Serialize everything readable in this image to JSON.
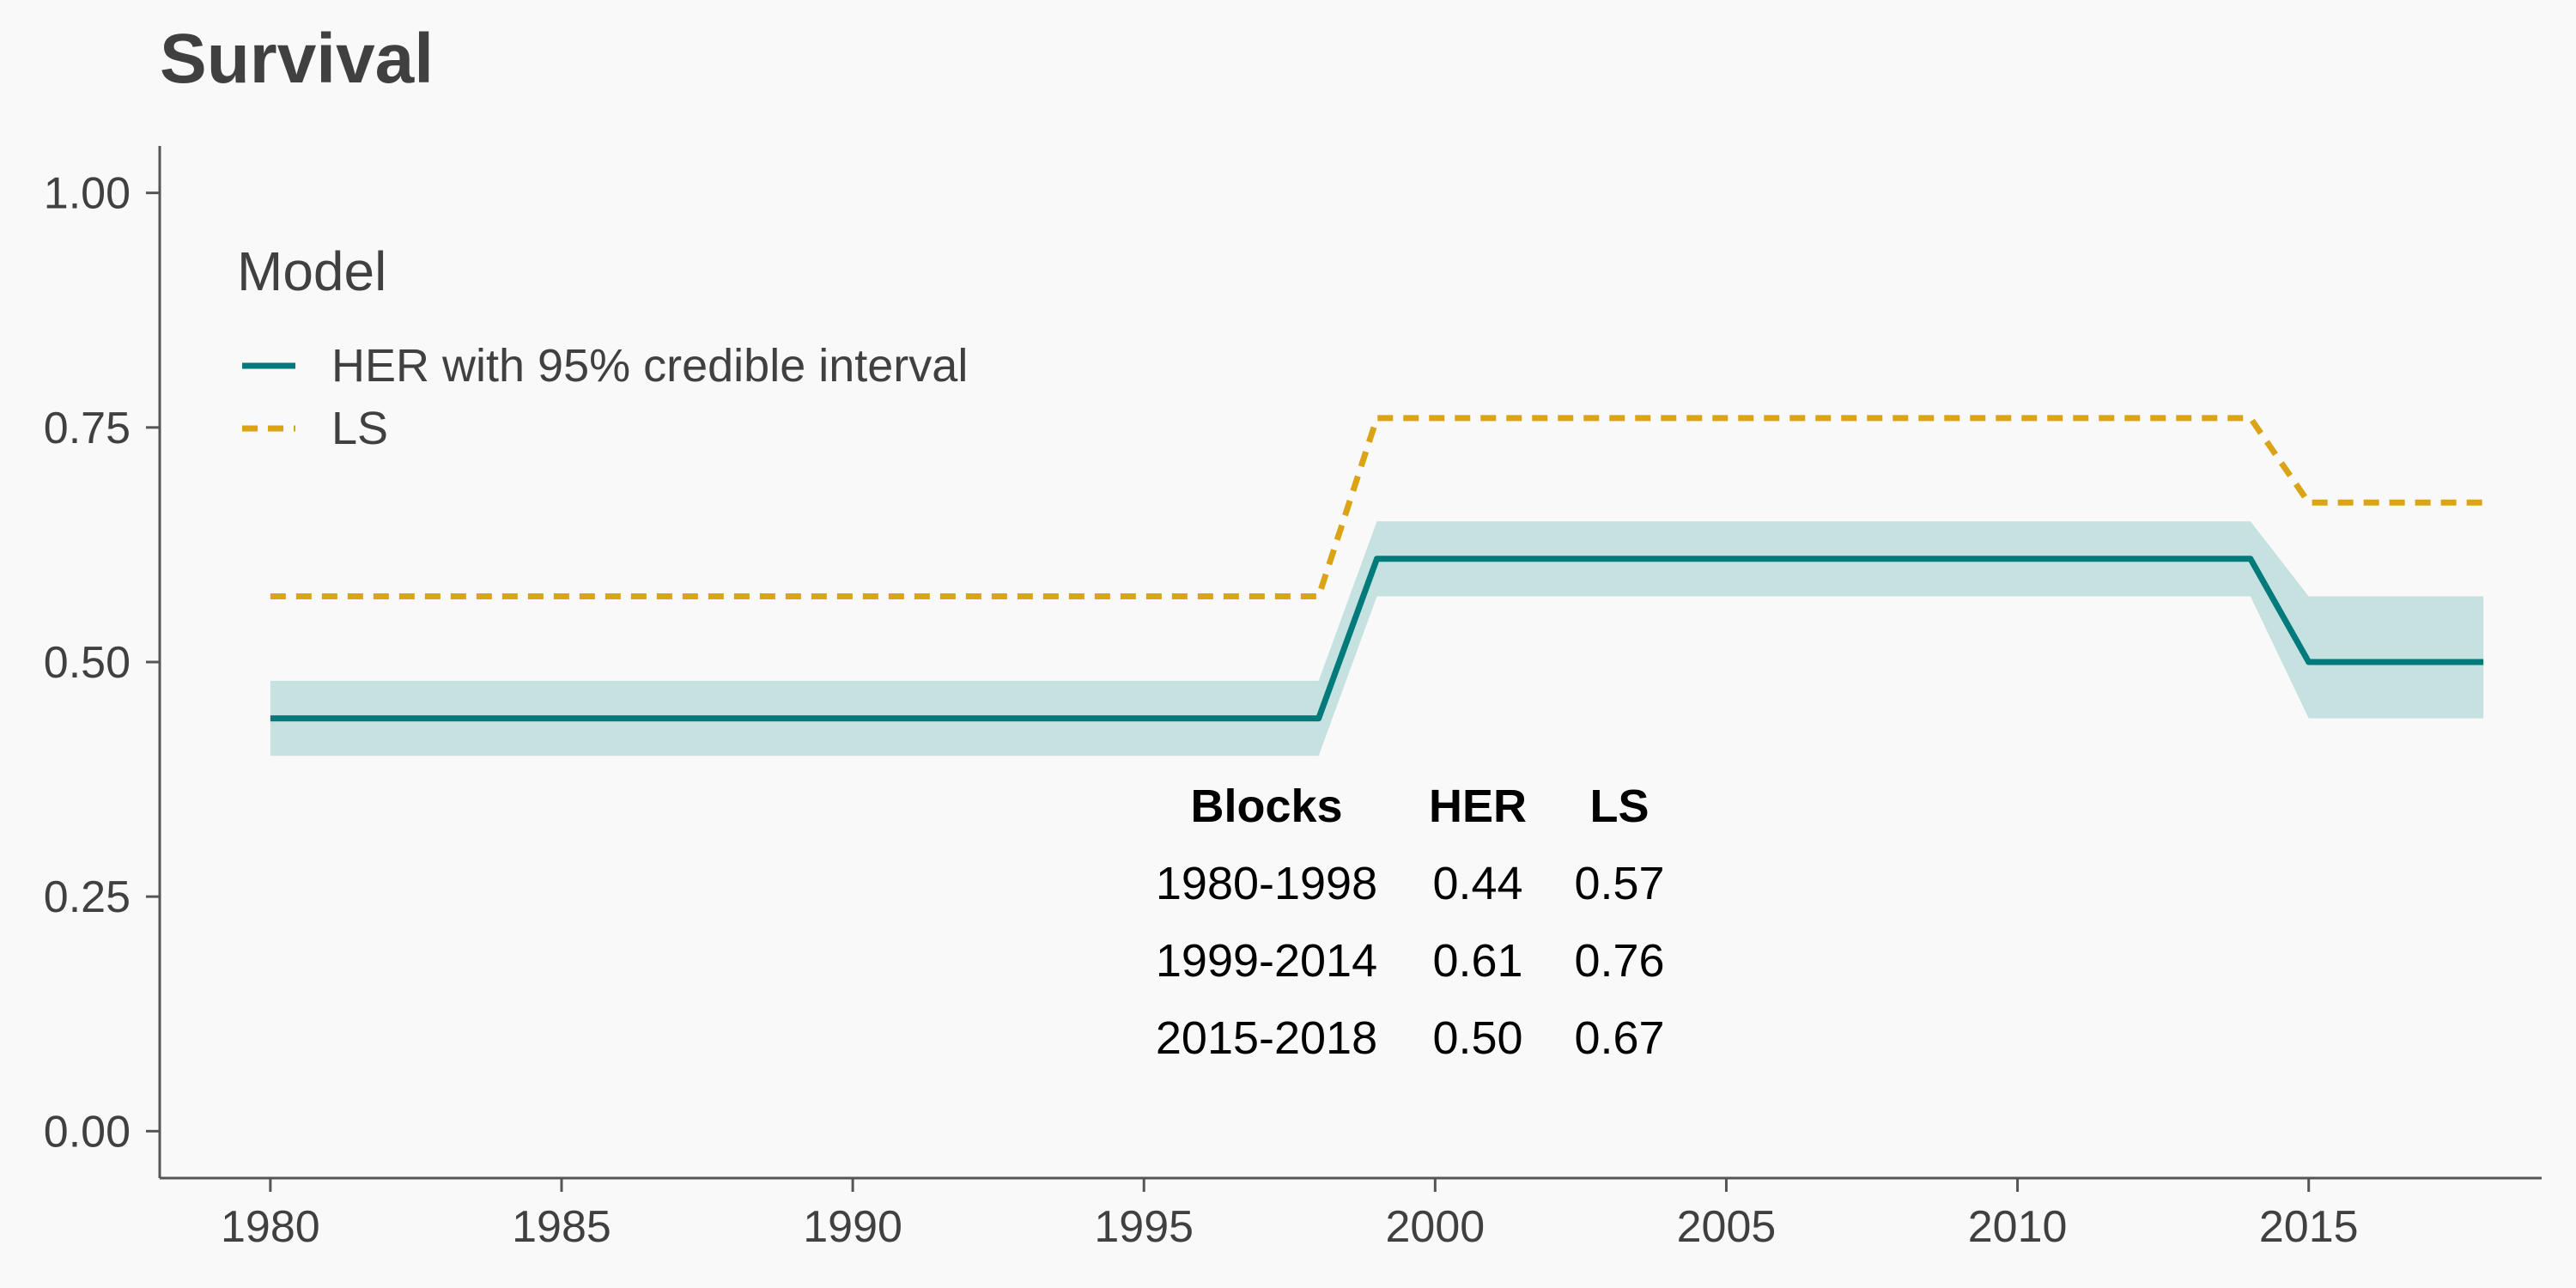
{
  "chart_data": {
    "type": "line",
    "title": "Survival",
    "xlabel": "",
    "ylabel": "",
    "xlim": [
      1978.1,
      2019.0
    ],
    "ylim": [
      -0.05,
      1.05
    ],
    "x_ticks": [
      1980,
      1985,
      1990,
      1995,
      2000,
      2005,
      2010,
      2015
    ],
    "y_ticks": [
      0.0,
      0.25,
      0.5,
      0.75,
      1.0
    ],
    "y_tick_labels": [
      "0.00",
      "0.25",
      "0.50",
      "0.75",
      "1.00"
    ],
    "grid": false,
    "legend": {
      "title": "Model",
      "placement": "top-left",
      "entries": [
        "HER with 95% credible interval",
        "LS"
      ]
    },
    "series": [
      {
        "name": "HER with 95% credible interval",
        "color": "#007a7a",
        "style": "solid",
        "x": [
          1980,
          1998,
          1999,
          2014,
          2015,
          2018
        ],
        "y": [
          0.44,
          0.44,
          0.61,
          0.61,
          0.5,
          0.5
        ],
        "lower": [
          0.4,
          0.4,
          0.57,
          0.57,
          0.44,
          0.44
        ],
        "upper": [
          0.48,
          0.48,
          0.65,
          0.65,
          0.57,
          0.57
        ],
        "band_color": "#c5e1e0"
      },
      {
        "name": "LS",
        "color": "#dba416",
        "style": "dashed",
        "x": [
          1980,
          1998,
          1999,
          2014,
          2015,
          2018
        ],
        "y": [
          0.57,
          0.57,
          0.76,
          0.76,
          0.67,
          0.67
        ]
      }
    ],
    "annotation_table": {
      "headers": [
        "Blocks",
        "HER",
        "LS"
      ],
      "rows": [
        [
          "1980-1998",
          "0.44",
          "0.57"
        ],
        [
          "1999-2014",
          "0.61",
          "0.76"
        ],
        [
          "2015-2018",
          "0.50",
          "0.67"
        ]
      ]
    }
  }
}
